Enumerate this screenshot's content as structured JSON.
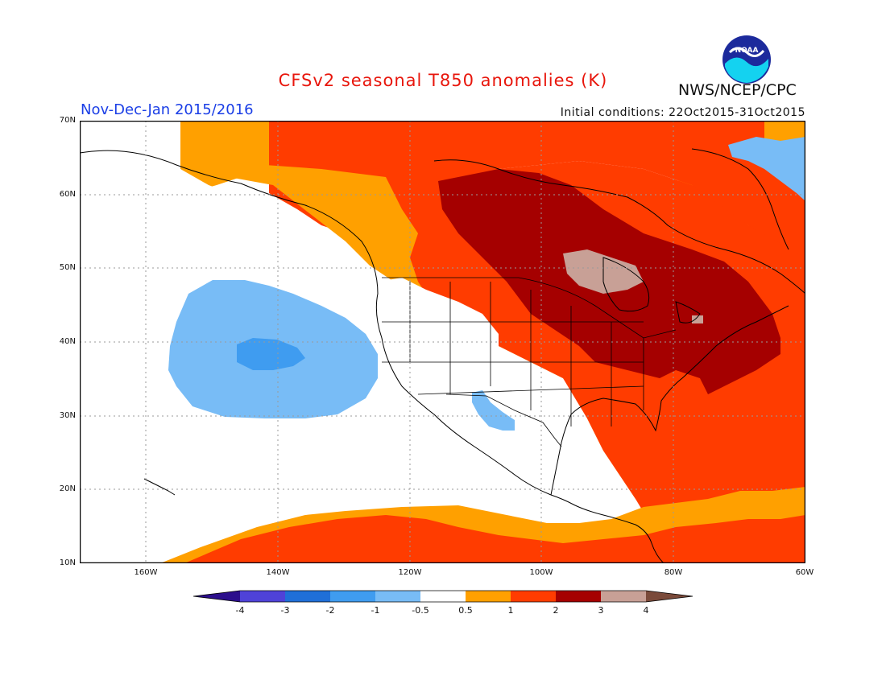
{
  "title": "CFSv2 seasonal T850 anomalies (K)",
  "period": "Nov-Dec-Jan 2015/2016",
  "initial_conditions": "Initial conditions: 22Oct2015-31Oct2015",
  "agency": "NWS/NCEP/CPC",
  "logo_text": "NOAA",
  "lat_labels": [
    "70N",
    "60N",
    "50N",
    "40N",
    "30N",
    "20N",
    "10N"
  ],
  "lon_labels": [
    "160W",
    "140W",
    "120W",
    "100W",
    "80W",
    "60W"
  ],
  "colorbar": {
    "labels": [
      "-4",
      "-3",
      "-2",
      "-1",
      "-0.5",
      "0.5",
      "1",
      "2",
      "3",
      "4"
    ],
    "colors": [
      "#2c0f8c",
      "#4f42d8",
      "#1f6fd8",
      "#3f9cf0",
      "#78bcf6",
      "#ffffff",
      "#ffa000",
      "#ff3c00",
      "#a50000",
      "#c8a096",
      "#7a4a3a"
    ]
  },
  "map_extent": {
    "lon": [
      -170,
      -60
    ],
    "lat": [
      10,
      70
    ]
  }
}
